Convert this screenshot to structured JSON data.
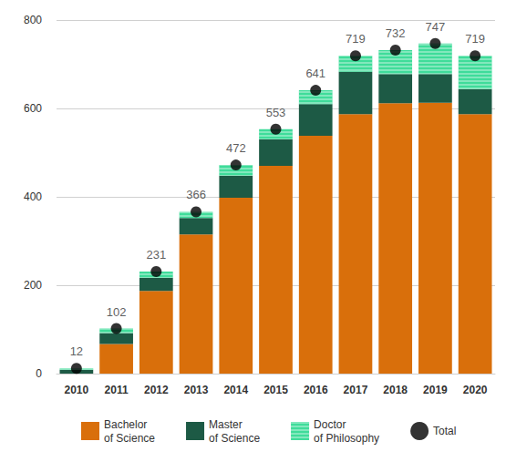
{
  "chart_data": {
    "type": "bar",
    "stacked": true,
    "grid": true,
    "legend": "bottom",
    "categories": [
      "2010",
      "2011",
      "2012",
      "2013",
      "2014",
      "2015",
      "2016",
      "2017",
      "2018",
      "2019",
      "2020"
    ],
    "ylim": [
      0,
      800
    ],
    "yticks": [
      0,
      200,
      400,
      600,
      800
    ],
    "series": [
      {
        "name": "Bachelor\nof Science",
        "type": "bar",
        "color": "#d96f0b",
        "values": [
          0,
          67,
          187,
          315,
          398,
          470,
          538,
          587,
          612,
          613,
          587
        ]
      },
      {
        "name": "Master\nof Science",
        "type": "bar",
        "color": "#1d5a45",
        "values": [
          9,
          25,
          30,
          37,
          50,
          60,
          72,
          96,
          66,
          65,
          57
        ]
      },
      {
        "name": "Doctor\nof Philosophy",
        "type": "bar",
        "color": "#3fdc9a",
        "values": [
          3,
          10,
          14,
          14,
          24,
          23,
          31,
          36,
          54,
          69,
          75
        ]
      },
      {
        "name": "Total",
        "type": "scatter",
        "color": "#000000",
        "marker": "circle",
        "data_labels": true,
        "values": [
          12,
          102,
          231,
          366,
          472,
          553,
          641,
          719,
          732,
          747,
          719
        ]
      }
    ]
  }
}
